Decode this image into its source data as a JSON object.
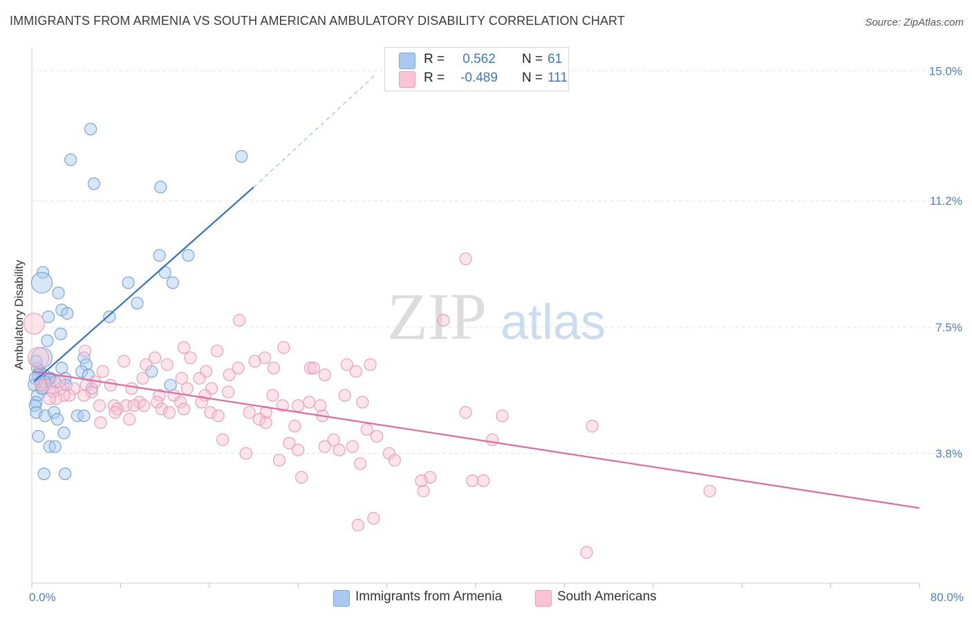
{
  "title": "IMMIGRANTS FROM ARMENIA VS SOUTH AMERICAN AMBULATORY DISABILITY CORRELATION CHART",
  "source": "Source: ZipAtlas.com",
  "watermark": {
    "zip": "ZIP",
    "atlas": "atlas"
  },
  "legend_stats": [
    {
      "r_label": "R =",
      "r_value": "0.562",
      "n_label": "N =",
      "n_value": "61",
      "color": "#a9c9f0",
      "border": "#7aa7de"
    },
    {
      "r_label": "R =",
      "r_value": "-0.489",
      "n_label": "N =",
      "n_value": "111",
      "color": "#f9c3d3",
      "border": "#ee9db6"
    }
  ],
  "chart_data": {
    "type": "scatter",
    "title": "IMMIGRANTS FROM ARMENIA VS SOUTH AMERICAN AMBULATORY DISABILITY CORRELATION CHART",
    "xlabel": "",
    "ylabel": "Ambulatory Disability",
    "xlim": [
      0,
      80
    ],
    "ylim": [
      0,
      15.5
    ],
    "x_tick_labels": [
      "0.0%",
      "80.0%"
    ],
    "y_ticks": [
      3.8,
      7.5,
      11.2,
      15.0
    ],
    "y_tick_labels": [
      "3.8%",
      "7.5%",
      "11.2%",
      "15.0%"
    ],
    "grid": true,
    "legend_position": "bottom",
    "series": [
      {
        "name": "Immigrants from Armenia",
        "color": "#a9c9f0",
        "stroke": "#6f9fd8",
        "trend": {
          "x": [
            0.2,
            20.0
          ],
          "y": [
            5.9,
            11.6
          ],
          "color": "#2f6fd0",
          "dashed_extension_to": [
            31.0,
            14.9
          ]
        },
        "points": [
          [
            5.3,
            13.3
          ],
          [
            3.5,
            12.4
          ],
          [
            18.9,
            12.5
          ],
          [
            5.6,
            11.7
          ],
          [
            11.6,
            11.6
          ],
          [
            11.5,
            9.6
          ],
          [
            14.1,
            9.6
          ],
          [
            1.0,
            9.1
          ],
          [
            12.0,
            9.1
          ],
          [
            0.9,
            8.8
          ],
          [
            8.7,
            8.8
          ],
          [
            12.7,
            8.8
          ],
          [
            2.4,
            8.5
          ],
          [
            9.5,
            8.2
          ],
          [
            2.7,
            8.0
          ],
          [
            3.2,
            7.9
          ],
          [
            7.0,
            7.8
          ],
          [
            1.5,
            7.8
          ],
          [
            2.6,
            7.3
          ],
          [
            1.4,
            7.1
          ],
          [
            0.9,
            6.6
          ],
          [
            4.7,
            6.6
          ],
          [
            0.5,
            6.3
          ],
          [
            0.7,
            6.2
          ],
          [
            2.7,
            6.3
          ],
          [
            4.9,
            6.4
          ],
          [
            10.8,
            6.2
          ],
          [
            4.5,
            6.2
          ],
          [
            5.1,
            6.1
          ],
          [
            1.1,
            6.1
          ],
          [
            0.6,
            6.1
          ],
          [
            1.7,
            6.0
          ],
          [
            3.0,
            6.0
          ],
          [
            1.6,
            6.0
          ],
          [
            0.3,
            6.0
          ],
          [
            1.2,
            5.9
          ],
          [
            0.8,
            5.9
          ],
          [
            2.1,
            5.9
          ],
          [
            3.1,
            5.8
          ],
          [
            12.5,
            5.8
          ],
          [
            0.2,
            5.8
          ],
          [
            1.0,
            5.7
          ],
          [
            5.4,
            5.7
          ],
          [
            1.9,
            5.6
          ],
          [
            0.5,
            5.5
          ],
          [
            0.4,
            5.3
          ],
          [
            0.3,
            5.2
          ],
          [
            0.4,
            5.0
          ],
          [
            1.2,
            4.9
          ],
          [
            2.0,
            5.0
          ],
          [
            4.1,
            4.9
          ],
          [
            4.7,
            4.9
          ],
          [
            2.3,
            4.8
          ],
          [
            2.9,
            4.4
          ],
          [
            0.6,
            4.3
          ],
          [
            1.6,
            4.0
          ],
          [
            2.1,
            4.0
          ],
          [
            1.1,
            3.2
          ],
          [
            3.0,
            3.2
          ],
          [
            0.4,
            6.5
          ],
          [
            0.9,
            5.7
          ]
        ]
      },
      {
        "name": "South Americans",
        "color": "#f9c3d3",
        "stroke": "#ec98b1",
        "trend": {
          "x": [
            0.2,
            80.0
          ],
          "y": [
            6.2,
            2.2
          ],
          "color": "#e0689a"
        },
        "points": [
          [
            0.2,
            7.6
          ],
          [
            0.6,
            6.6
          ],
          [
            39.1,
            9.5
          ],
          [
            37.1,
            7.7
          ],
          [
            18.7,
            7.7
          ],
          [
            13.7,
            6.9
          ],
          [
            22.7,
            6.9
          ],
          [
            16.7,
            6.8
          ],
          [
            4.8,
            6.8
          ],
          [
            14.3,
            6.6
          ],
          [
            11.1,
            6.6
          ],
          [
            21.0,
            6.6
          ],
          [
            8.3,
            6.5
          ],
          [
            20.1,
            6.5
          ],
          [
            30.5,
            6.4
          ],
          [
            12.2,
            6.4
          ],
          [
            10.3,
            6.4
          ],
          [
            28.4,
            6.4
          ],
          [
            18.6,
            6.3
          ],
          [
            21.8,
            6.3
          ],
          [
            25.1,
            6.3
          ],
          [
            25.4,
            6.3
          ],
          [
            15.7,
            6.2
          ],
          [
            6.4,
            6.2
          ],
          [
            17.8,
            6.1
          ],
          [
            26.4,
            6.1
          ],
          [
            29.2,
            6.2
          ],
          [
            13.5,
            6.0
          ],
          [
            15.1,
            6.0
          ],
          [
            10.0,
            6.0
          ],
          [
            5.7,
            5.9
          ],
          [
            3.8,
            5.7
          ],
          [
            7.1,
            5.8
          ],
          [
            1.3,
            5.8
          ],
          [
            2.6,
            5.7
          ],
          [
            4.9,
            5.8
          ],
          [
            14.0,
            5.7
          ],
          [
            17.7,
            5.6
          ],
          [
            0.8,
            5.8
          ],
          [
            5.4,
            5.6
          ],
          [
            9.0,
            5.7
          ],
          [
            3.4,
            5.5
          ],
          [
            2.9,
            5.5
          ],
          [
            16.2,
            5.7
          ],
          [
            1.9,
            5.6
          ],
          [
            11.5,
            5.5
          ],
          [
            15.6,
            5.5
          ],
          [
            12.8,
            5.5
          ],
          [
            21.7,
            5.5
          ],
          [
            28.2,
            5.5
          ],
          [
            4.7,
            5.5
          ],
          [
            2.2,
            5.4
          ],
          [
            1.6,
            5.4
          ],
          [
            9.7,
            5.3
          ],
          [
            15.3,
            5.3
          ],
          [
            13.4,
            5.3
          ],
          [
            11.3,
            5.3
          ],
          [
            25.0,
            5.3
          ],
          [
            29.8,
            5.3
          ],
          [
            7.4,
            5.2
          ],
          [
            8.5,
            5.2
          ],
          [
            9.2,
            5.2
          ],
          [
            10.1,
            5.2
          ],
          [
            22.6,
            5.2
          ],
          [
            24.0,
            5.2
          ],
          [
            7.7,
            5.1
          ],
          [
            11.7,
            5.1
          ],
          [
            13.7,
            5.1
          ],
          [
            6.1,
            5.2
          ],
          [
            21.1,
            5.0
          ],
          [
            19.6,
            5.0
          ],
          [
            16.1,
            5.0
          ],
          [
            12.4,
            5.0
          ],
          [
            7.5,
            5.0
          ],
          [
            39.1,
            5.0
          ],
          [
            42.4,
            4.9
          ],
          [
            20.5,
            4.8
          ],
          [
            16.8,
            4.9
          ],
          [
            26.2,
            4.9
          ],
          [
            8.8,
            4.8
          ],
          [
            6.2,
            4.7
          ],
          [
            21.1,
            4.7
          ],
          [
            23.7,
            4.6
          ],
          [
            30.2,
            4.5
          ],
          [
            50.5,
            4.6
          ],
          [
            31.1,
            4.3
          ],
          [
            17.2,
            4.2
          ],
          [
            23.2,
            4.1
          ],
          [
            27.2,
            4.2
          ],
          [
            26.4,
            4.0
          ],
          [
            28.9,
            4.0
          ],
          [
            41.5,
            4.2
          ],
          [
            27.7,
            3.9
          ],
          [
            19.3,
            3.8
          ],
          [
            24.0,
            3.9
          ],
          [
            32.2,
            3.8
          ],
          [
            32.7,
            3.6
          ],
          [
            22.3,
            3.6
          ],
          [
            29.6,
            3.5
          ],
          [
            35.9,
            3.1
          ],
          [
            24.3,
            3.1
          ],
          [
            39.7,
            3.0
          ],
          [
            40.7,
            3.0
          ],
          [
            35.3,
            2.7
          ],
          [
            61.1,
            2.7
          ],
          [
            30.8,
            1.9
          ],
          [
            29.4,
            1.7
          ],
          [
            50.0,
            0.9
          ],
          [
            26.0,
            5.2
          ],
          [
            2.5,
            5.9
          ],
          [
            35.1,
            3.0
          ]
        ]
      }
    ]
  }
}
